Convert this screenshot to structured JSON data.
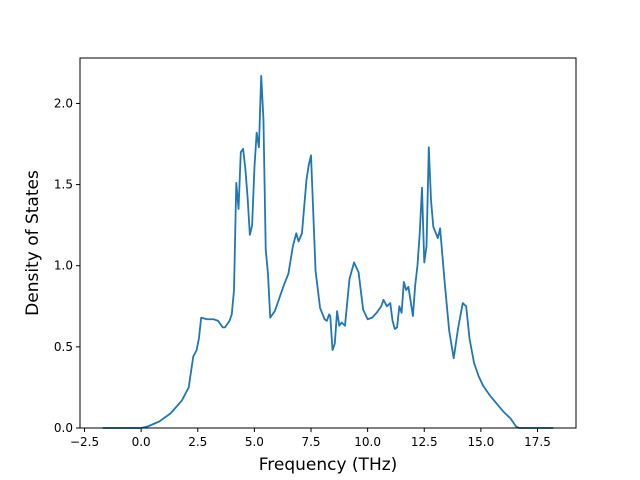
{
  "chart_data": {
    "type": "line",
    "title": "",
    "xlabel": "Frequency (THz)",
    "ylabel": "Density of States",
    "xlim": [
      -2.7,
      19.2
    ],
    "ylim": [
      0.0,
      2.28
    ],
    "xticks": [
      -2.5,
      0.0,
      2.5,
      5.0,
      7.5,
      10.0,
      12.5,
      15.0,
      17.5
    ],
    "xtick_labels": [
      "−2.5",
      "0.0",
      "2.5",
      "5.0",
      "7.5",
      "10.0",
      "12.5",
      "15.0",
      "17.5"
    ],
    "yticks": [
      0.0,
      0.5,
      1.0,
      1.5,
      2.0
    ],
    "ytick_labels": [
      "0.0",
      "0.5",
      "1.0",
      "1.5",
      "2.0"
    ],
    "grid": false,
    "legend": "none",
    "line_color": "#1f77b4",
    "series": [
      {
        "x": [
          -1.7,
          0.0,
          0.3,
          0.8,
          1.3,
          1.8,
          2.1,
          2.3,
          2.45,
          2.55,
          2.65,
          2.9,
          3.2,
          3.4,
          3.6,
          3.7,
          3.8,
          3.9,
          4.0,
          4.1,
          4.2,
          4.3,
          4.4,
          4.5,
          4.6,
          4.7,
          4.8,
          4.9,
          5.0,
          5.1,
          5.2,
          5.3,
          5.4,
          5.5,
          5.6,
          5.7,
          5.9,
          6.1,
          6.3,
          6.5,
          6.7,
          6.85,
          6.95,
          7.1,
          7.3,
          7.4,
          7.5,
          7.7,
          7.9,
          8.1,
          8.2,
          8.3,
          8.35,
          8.45,
          8.55,
          8.65,
          8.75,
          8.85,
          9.0,
          9.2,
          9.4,
          9.6,
          9.8,
          10.0,
          10.2,
          10.4,
          10.5,
          10.6,
          10.7,
          10.85,
          11.0,
          11.1,
          11.2,
          11.3,
          11.4,
          11.5,
          11.6,
          11.7,
          11.8,
          12.0,
          12.1,
          12.2,
          12.3,
          12.4,
          12.5,
          12.6,
          12.7,
          12.8,
          12.9,
          13.1,
          13.2,
          13.4,
          13.6,
          13.8,
          14.0,
          14.2,
          14.35,
          14.5,
          14.7,
          14.9,
          15.1,
          15.4,
          15.7,
          16.0,
          16.3,
          16.55,
          16.7,
          18.2
        ],
        "y": [
          0.0,
          0.0,
          0.01,
          0.04,
          0.09,
          0.17,
          0.25,
          0.44,
          0.48,
          0.55,
          0.68,
          0.67,
          0.67,
          0.66,
          0.62,
          0.62,
          0.64,
          0.66,
          0.7,
          0.85,
          1.51,
          1.35,
          1.7,
          1.72,
          1.6,
          1.42,
          1.19,
          1.25,
          1.6,
          1.82,
          1.73,
          2.17,
          1.9,
          1.1,
          0.95,
          0.68,
          0.72,
          0.8,
          0.88,
          0.95,
          1.12,
          1.2,
          1.15,
          1.2,
          1.53,
          1.62,
          1.68,
          0.97,
          0.74,
          0.67,
          0.66,
          0.7,
          0.69,
          0.48,
          0.52,
          0.72,
          0.63,
          0.65,
          0.63,
          0.92,
          1.02,
          0.96,
          0.73,
          0.67,
          0.68,
          0.71,
          0.73,
          0.75,
          0.79,
          0.75,
          0.77,
          0.66,
          0.61,
          0.62,
          0.75,
          0.71,
          0.9,
          0.85,
          0.87,
          0.69,
          0.88,
          1.0,
          1.2,
          1.48,
          1.02,
          1.12,
          1.73,
          1.4,
          1.24,
          1.17,
          1.23,
          0.9,
          0.6,
          0.43,
          0.62,
          0.77,
          0.75,
          0.55,
          0.4,
          0.32,
          0.26,
          0.2,
          0.15,
          0.1,
          0.06,
          0.01,
          0.0,
          0.0
        ]
      }
    ]
  }
}
